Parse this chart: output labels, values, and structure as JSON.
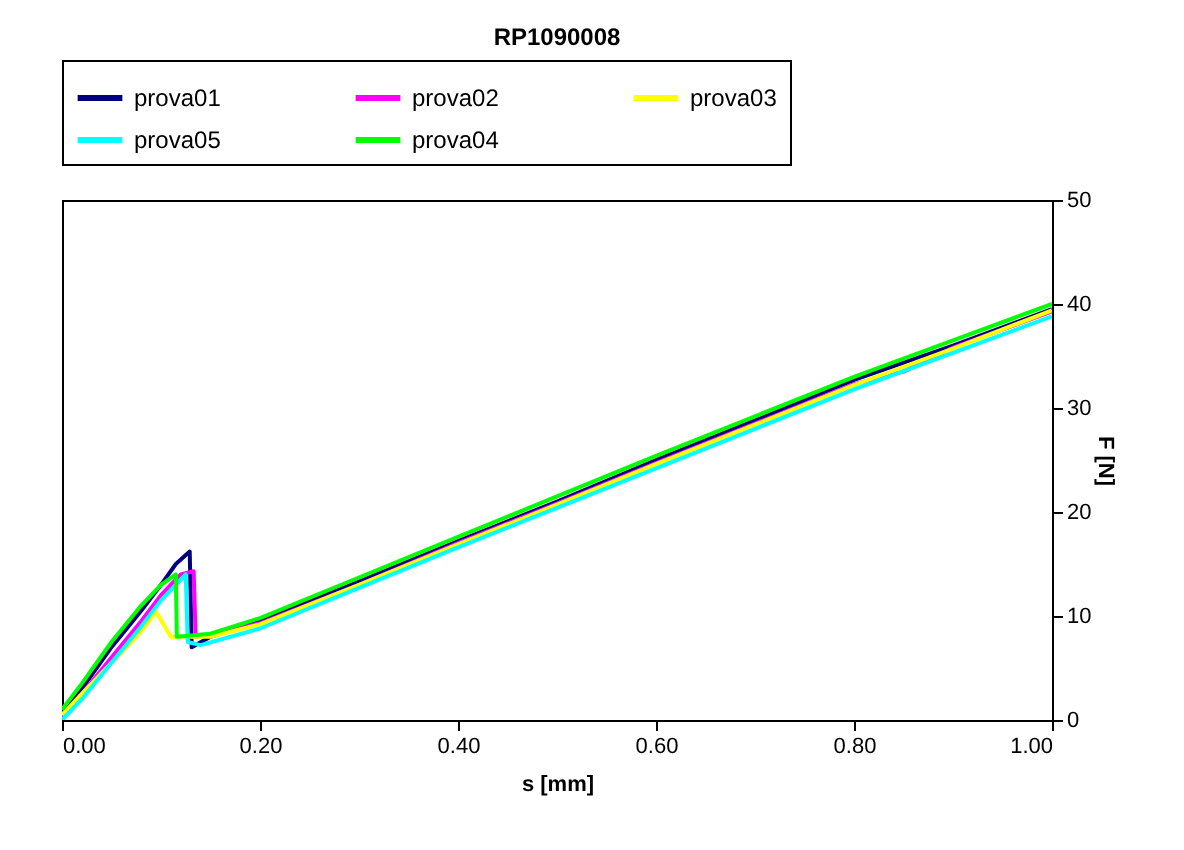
{
  "chart_data": {
    "type": "line",
    "title": "RP1090008",
    "xlabel": "s [mm]",
    "ylabel": "F [N]",
    "xlim": [
      0,
      1
    ],
    "xticks": [
      {
        "value": 0,
        "label": "0.00"
      },
      {
        "value": 0.2,
        "label": "0.20"
      },
      {
        "value": 0.4,
        "label": "0.40"
      },
      {
        "value": 0.6,
        "label": "0.60"
      },
      {
        "value": 0.8,
        "label": "0.80"
      },
      {
        "value": 1,
        "label": "1.00"
      }
    ],
    "ylim": [
      0,
      50
    ],
    "yticks": [
      0,
      10,
      20,
      30,
      40,
      50
    ],
    "grid": false,
    "legend": "top",
    "marker": "none",
    "line_style": "solid",
    "series": [
      {
        "name": "prova01",
        "color": "#000080",
        "x": [
          0,
          0.02,
          0.05,
          0.08,
          0.1,
          0.115,
          0.129,
          0.131,
          0.15,
          0.2,
          0.3,
          0.4,
          0.5,
          0.6,
          0.7,
          0.8,
          0.9,
          1.0
        ],
        "values": [
          0.5,
          3,
          7,
          10.5,
          13,
          15,
          16.2,
          7,
          8,
          9.5,
          13.3,
          17.2,
          21,
          25,
          28.8,
          32.7,
          36,
          39.5
        ]
      },
      {
        "name": "prova02",
        "color": "#ff00ff",
        "x": [
          0,
          0.02,
          0.05,
          0.08,
          0.1,
          0.12,
          0.133,
          0.135,
          0.15,
          0.2,
          0.3,
          0.4,
          0.5,
          0.6,
          0.7,
          0.8,
          0.85,
          0.9,
          1.0
        ],
        "values": [
          0.3,
          2.5,
          6,
          9.5,
          12,
          14,
          14.3,
          8,
          8.2,
          9.3,
          13,
          17,
          20.8,
          24.7,
          28.5,
          32.3,
          33.5,
          35.8,
          39.3
        ]
      },
      {
        "name": "prova03",
        "color": "#ffff00",
        "x": [
          0,
          0.02,
          0.05,
          0.08,
          0.095,
          0.11,
          0.15,
          0.2,
          0.3,
          0.4,
          0.5,
          0.6,
          0.7,
          0.8,
          0.9,
          1.0
        ],
        "values": [
          0.5,
          2.5,
          5.5,
          8.5,
          10.4,
          8,
          8,
          9.2,
          13,
          16.9,
          20.7,
          24.6,
          28.4,
          32.2,
          35.7,
          39.4
        ]
      },
      {
        "name": "prova05",
        "color": "#00ffff",
        "x": [
          0,
          0.02,
          0.05,
          0.08,
          0.1,
          0.125,
          0.127,
          0.14,
          0.2,
          0.3,
          0.4,
          0.5,
          0.6,
          0.7,
          0.8,
          0.9,
          1.0
        ],
        "values": [
          0,
          2,
          5.5,
          9,
          11.5,
          14,
          7.5,
          7.2,
          8.8,
          12.7,
          16.6,
          20.4,
          24.2,
          28,
          31.8,
          35.3,
          38.8
        ]
      },
      {
        "name": "prova04",
        "color": "#00ff00",
        "x": [
          0,
          0.02,
          0.05,
          0.08,
          0.1,
          0.115,
          0.116,
          0.15,
          0.2,
          0.3,
          0.4,
          0.5,
          0.6,
          0.7,
          0.8,
          0.9,
          1.0
        ],
        "values": [
          1,
          3.5,
          7.5,
          11,
          13,
          14,
          8,
          8.3,
          9.8,
          13.7,
          17.6,
          21.5,
          25.4,
          29.2,
          33,
          36.5,
          40
        ]
      }
    ]
  }
}
